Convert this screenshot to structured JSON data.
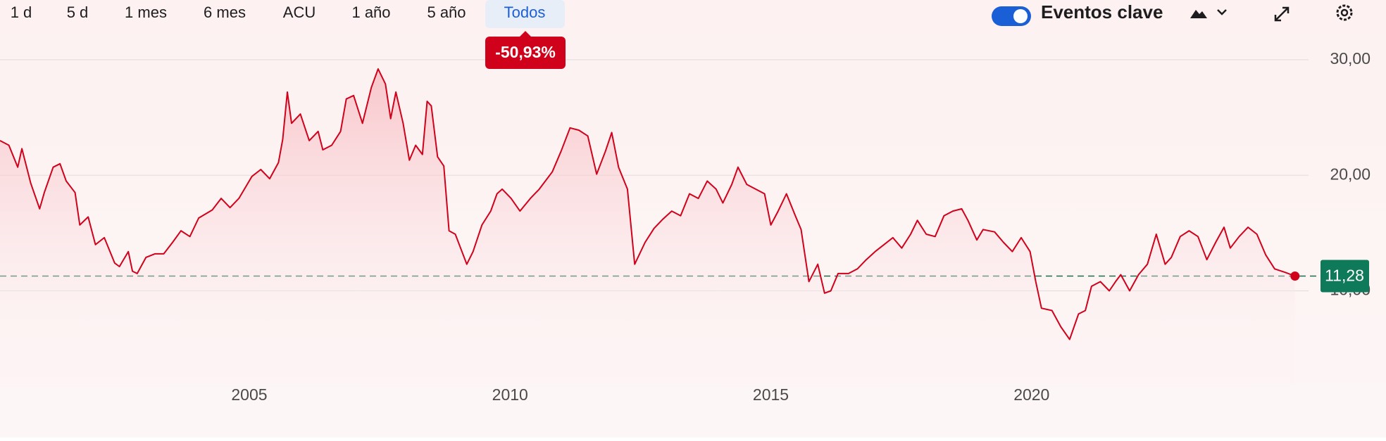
{
  "toolbar": {
    "ranges": [
      {
        "label": "1 d"
      },
      {
        "label": "5 d"
      },
      {
        "label": "1 mes"
      },
      {
        "label": "6 mes"
      },
      {
        "label": "ACU"
      },
      {
        "label": "1 año"
      },
      {
        "label": "5 año"
      },
      {
        "label": "Todos",
        "active": true
      }
    ],
    "events_toggle": "Eventos clave"
  },
  "chart_data": {
    "type": "line",
    "color": "#d0021b",
    "change_label": "-50,93%",
    "last_price": {
      "value": 11.28,
      "label": "11,28"
    },
    "xlim": [
      2000.22,
      2025.31
    ],
    "xticks": [
      2005,
      2010,
      2015,
      2020
    ],
    "ylim": [
      2,
      32
    ],
    "yticks": [
      {
        "value": 10,
        "label": "10,00"
      },
      {
        "value": 20,
        "label": "20,00"
      },
      {
        "value": 30,
        "label": "30,00"
      }
    ],
    "grid": true,
    "x": [
      2000.22,
      2000.39,
      2000.56,
      2000.64,
      2000.81,
      2000.98,
      2001.07,
      2001.24,
      2001.37,
      2001.49,
      2001.66,
      2001.75,
      2001.91,
      2002.05,
      2002.22,
      2002.42,
      2002.51,
      2002.68,
      2002.76,
      2002.85,
      2003.02,
      2003.19,
      2003.36,
      2003.53,
      2003.69,
      2003.86,
      2004.03,
      2004.29,
      2004.46,
      2004.63,
      2004.8,
      2005.05,
      2005.22,
      2005.39,
      2005.56,
      2005.64,
      2005.73,
      2005.81,
      2005.98,
      2006.15,
      2006.32,
      2006.41,
      2006.58,
      2006.75,
      2006.86,
      2007.0,
      2007.17,
      2007.34,
      2007.47,
      2007.61,
      2007.71,
      2007.81,
      2007.95,
      2008.07,
      2008.19,
      2008.32,
      2008.41,
      2008.49,
      2008.61,
      2008.73,
      2008.83,
      2008.95,
      2009.17,
      2009.29,
      2009.46,
      2009.63,
      2009.75,
      2009.85,
      2010.02,
      2010.19,
      2010.39,
      2010.56,
      2010.81,
      2010.98,
      2011.15,
      2011.32,
      2011.49,
      2011.66,
      2011.83,
      2011.95,
      2012.08,
      2012.25,
      2012.39,
      2012.59,
      2012.76,
      2012.93,
      2013.1,
      2013.27,
      2013.44,
      2013.61,
      2013.78,
      2013.95,
      2014.08,
      2014.25,
      2014.37,
      2014.54,
      2014.71,
      2014.88,
      2015.0,
      2015.14,
      2015.3,
      2015.47,
      2015.58,
      2015.73,
      2015.9,
      2016.03,
      2016.15,
      2016.29,
      2016.49,
      2016.66,
      2016.83,
      2017.0,
      2017.17,
      2017.34,
      2017.51,
      2017.68,
      2017.81,
      2017.98,
      2018.15,
      2018.32,
      2018.49,
      2018.66,
      2018.78,
      2018.95,
      2019.07,
      2019.29,
      2019.46,
      2019.63,
      2019.8,
      2019.97,
      2020.08,
      2020.19,
      2020.39,
      2020.56,
      2020.73,
      2020.9,
      2021.03,
      2021.15,
      2021.32,
      2021.49,
      2021.61,
      2021.71,
      2021.88,
      2022.05,
      2022.22,
      2022.39,
      2022.56,
      2022.68,
      2022.85,
      2023.02,
      2023.19,
      2023.36,
      2023.53,
      2023.69,
      2023.81,
      2023.98,
      2024.15,
      2024.32,
      2024.49,
      2024.66,
      2024.86,
      2025.05
    ],
    "values": [
      23.0,
      22.6,
      20.7,
      22.3,
      19.3,
      17.1,
      18.5,
      20.7,
      21.0,
      19.5,
      18.5,
      15.7,
      16.4,
      14.0,
      14.6,
      12.4,
      12.1,
      13.4,
      11.7,
      11.5,
      12.9,
      13.2,
      13.2,
      14.2,
      15.2,
      14.7,
      16.3,
      17.0,
      18.0,
      17.2,
      18.0,
      19.9,
      20.5,
      19.7,
      21.1,
      23.1,
      27.2,
      24.5,
      25.3,
      23.0,
      23.8,
      22.2,
      22.6,
      23.8,
      26.6,
      26.9,
      24.5,
      27.6,
      29.2,
      27.9,
      24.9,
      27.2,
      24.5,
      21.3,
      22.6,
      21.8,
      26.4,
      26.0,
      21.6,
      20.8,
      15.2,
      14.9,
      12.3,
      13.4,
      15.7,
      16.9,
      18.4,
      18.8,
      18.0,
      16.9,
      18.0,
      18.8,
      20.3,
      22.1,
      24.1,
      23.9,
      23.4,
      20.1,
      22.1,
      23.7,
      20.7,
      18.8,
      12.3,
      14.2,
      15.4,
      16.2,
      16.9,
      16.5,
      18.4,
      18.0,
      19.5,
      18.8,
      17.6,
      19.2,
      20.7,
      19.2,
      18.8,
      18.4,
      15.7,
      16.9,
      18.4,
      16.5,
      15.3,
      10.8,
      12.3,
      9.8,
      10.0,
      11.5,
      11.5,
      11.9,
      12.7,
      13.4,
      14.0,
      14.6,
      13.7,
      14.9,
      16.1,
      14.9,
      14.7,
      16.5,
      16.9,
      17.1,
      16.1,
      14.4,
      15.3,
      15.1,
      14.2,
      13.4,
      14.6,
      13.4,
      10.8,
      8.5,
      8.3,
      6.9,
      5.8,
      8.0,
      8.3,
      10.4,
      10.8,
      10.0,
      10.8,
      11.4,
      10.0,
      11.4,
      12.3,
      14.9,
      12.3,
      12.9,
      14.7,
      15.2,
      14.7,
      12.7,
      14.2,
      15.5,
      13.7,
      14.7,
      15.5,
      14.9,
      13.1,
      11.9,
      11.6,
      11.28
    ]
  }
}
